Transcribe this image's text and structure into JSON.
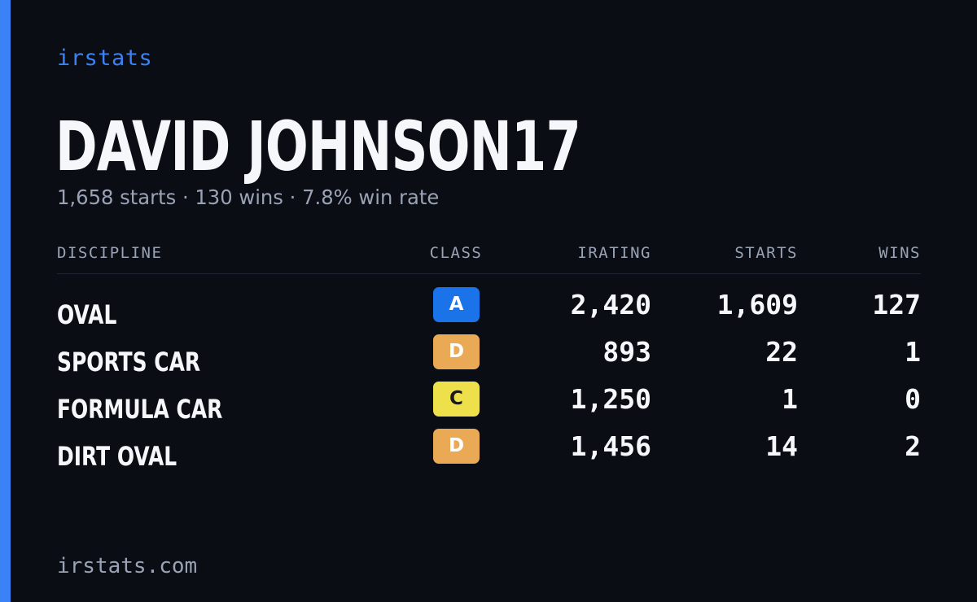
{
  "brand": "irstats",
  "driver": {
    "name": "DAVID JOHNSON17",
    "summary": "1,658 starts · 130 wins · 7.8% win rate"
  },
  "table": {
    "headers": {
      "discipline": "DISCIPLINE",
      "class": "CLASS",
      "irating": "IRATING",
      "starts": "STARTS",
      "wins": "WINS"
    },
    "rows": [
      {
        "discipline": "OVAL",
        "class": "A",
        "irating": "2,420",
        "starts": "1,609",
        "wins": "127"
      },
      {
        "discipline": "SPORTS CAR",
        "class": "D",
        "irating": "893",
        "starts": "22",
        "wins": "1"
      },
      {
        "discipline": "FORMULA CAR",
        "class": "C",
        "irating": "1,250",
        "starts": "1",
        "wins": "0"
      },
      {
        "discipline": "DIRT OVAL",
        "class": "D",
        "irating": "1,456",
        "starts": "14",
        "wins": "2"
      }
    ]
  },
  "class_colors": {
    "A": {
      "bg": "#1a73e8",
      "fg": "#ffffff"
    },
    "C": {
      "bg": "#ede04a",
      "fg": "#1a1a1a"
    },
    "D": {
      "bg": "#eaa955",
      "fg": "#ffffff"
    }
  },
  "colors": {
    "accent": "#3b82f6",
    "background": "#0a0d14",
    "text": "#f5f7fb",
    "muted": "#9aa3b5"
  },
  "footer": "irstats.com"
}
